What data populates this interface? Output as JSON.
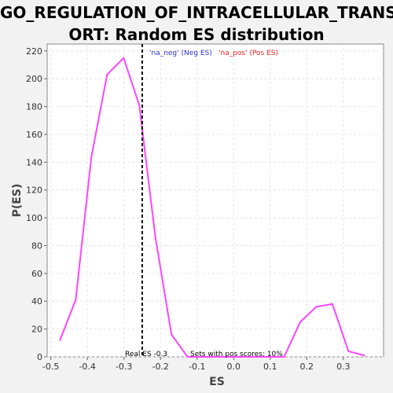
{
  "title": {
    "line1": "GO_REGULATION_OF_INTRACELLULAR_TRANSP",
    "line2": "ORT: Random ES distribution"
  },
  "chart_data": {
    "type": "line",
    "xlabel": "ES",
    "ylabel": "P(ES)",
    "xlim": [
      -0.51,
      0.41
    ],
    "ylim": [
      0,
      225
    ],
    "xticks": [
      "-0.5",
      "-0.4",
      "-0.3",
      "-0.2",
      "-0.1",
      "0.0",
      "0.1",
      "0.2",
      "0.3"
    ],
    "xtick_values": [
      -0.5,
      -0.4,
      -0.3,
      -0.2,
      -0.1,
      0.0,
      0.1,
      0.2,
      0.3
    ],
    "yticks": [
      "0",
      "20",
      "40",
      "60",
      "80",
      "100",
      "120",
      "140",
      "160",
      "180",
      "200",
      "220"
    ],
    "ytick_values": [
      0,
      20,
      40,
      60,
      80,
      100,
      120,
      140,
      160,
      180,
      200,
      220
    ],
    "grid": true,
    "series": [
      {
        "color": "#ff44ff",
        "x": [
          -0.475,
          -0.432,
          -0.389,
          -0.346,
          -0.301,
          -0.258,
          -0.214,
          -0.17,
          -0.126,
          -0.082,
          -0.038,
          0.006,
          0.05,
          0.094,
          0.138,
          0.182,
          0.226,
          0.27,
          0.314,
          0.358
        ],
        "y": [
          12,
          41,
          144,
          203,
          215,
          181,
          86,
          16,
          0,
          0,
          0,
          0,
          0,
          0,
          0,
          25,
          36,
          38,
          4,
          1
        ]
      }
    ],
    "vline": {
      "x": -0.25,
      "color": "#000000",
      "style": "dashed"
    },
    "legend": [
      {
        "text": "'na_neg' (Neg ES)",
        "color": "#3333cc"
      },
      {
        "text": "'na_pos' (Pos ES)",
        "color": "#ee2222"
      }
    ],
    "annotations": {
      "real_es": "Real ES -0.3",
      "pos_scores": "Sets with pos scores: 10%"
    }
  }
}
